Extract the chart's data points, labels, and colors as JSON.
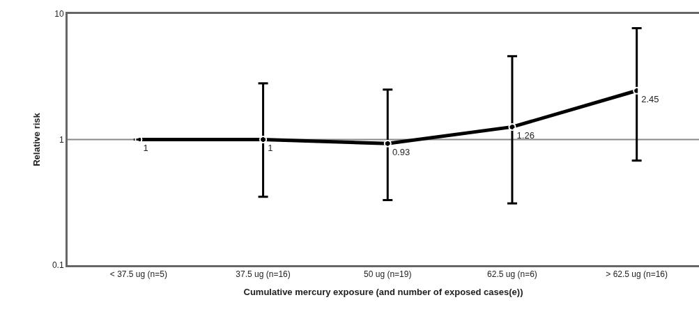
{
  "chart_data": {
    "type": "line",
    "xlabel": "Cumulative mercury exposure (and number of exposed cases(e))",
    "ylabel": "Relative risk",
    "categories": [
      "< 37.5 ug (n=5)",
      "37.5 ug (n=16)",
      "50 ug (n=19)",
      "62.5 ug (n=6)",
      "> 62.5 ug (n=16)"
    ],
    "series": [
      {
        "color": "#000000",
        "values": [
          1,
          1,
          0.93,
          1.26,
          2.45
        ],
        "errors": [
          null,
          [
            0.35,
            2.8
          ],
          [
            0.33,
            2.5
          ],
          [
            0.31,
            4.6
          ],
          [
            0.68,
            7.7
          ]
        ]
      }
    ],
    "log": "y",
    "ylim": [
      0.1,
      10
    ],
    "yticks": [
      0.1,
      1,
      10
    ],
    "grid": false,
    "marker": "circle",
    "line_style": "solid",
    "data_labels": true,
    "ref_lines": [
      {
        "axis": "y",
        "value": 1,
        "color": "#888888"
      }
    ]
  }
}
